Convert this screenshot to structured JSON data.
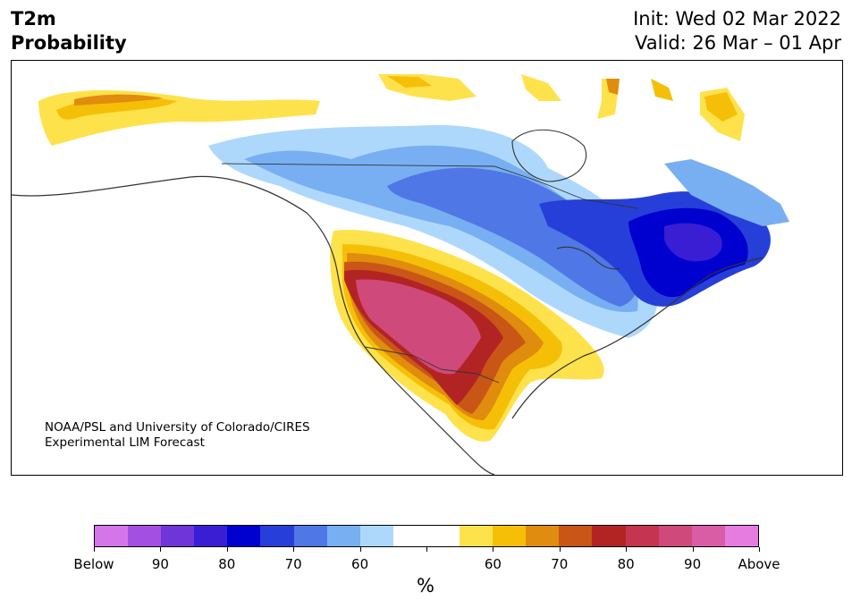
{
  "header": {
    "variable": "T2m",
    "product": "Probability",
    "init": "Init: Wed 02 Mar 2022",
    "valid": "Valid: 26 Mar – 01 Apr"
  },
  "credit": {
    "line1": "NOAA/PSL and University of Colorado/CIRES",
    "line2": "Experimental LIM Forecast"
  },
  "colorbar": {
    "unit": "%",
    "colors": [
      "#d575ea",
      "#a350e2",
      "#7035d9",
      "#3a1ed4",
      "#0000cf",
      "#263fd9",
      "#4f77e5",
      "#78aff2",
      "#aed8fb",
      "#ffffff",
      "#ffffff",
      "#fee24b",
      "#f5bf08",
      "#e08c0e",
      "#c95616",
      "#b22424",
      "#c63550",
      "#cf4a7a",
      "#d95da5",
      "#e67be0"
    ],
    "labels": [
      "Below",
      "90",
      "80",
      "70",
      "60",
      "",
      "60",
      "70",
      "80",
      "90",
      "Above"
    ]
  },
  "legend_colors": {
    "above_light": "#fee24b",
    "above_orange": "#f5bf08",
    "above_dark_orange": "#e08c0e",
    "above_red": "#b22424",
    "above_pink": "#cf4a7a",
    "below_light": "#aed8fb",
    "below_mid": "#78aff2",
    "below_blue": "#4f77e5",
    "below_deep": "#263fd9",
    "below_darkest": "#0000cf",
    "below_violet": "#3a1ed4"
  }
}
